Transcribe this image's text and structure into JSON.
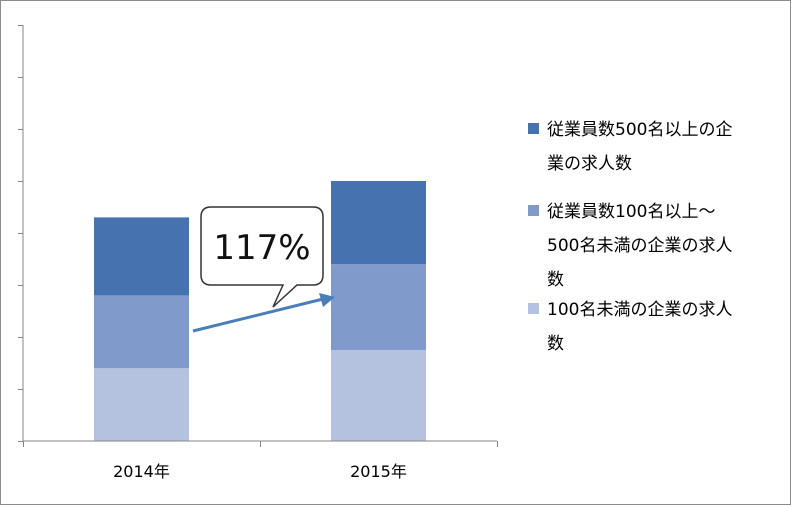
{
  "chart_data": {
    "type": "bar",
    "stacked": true,
    "categories": [
      "2014年",
      "2015年"
    ],
    "series": [
      {
        "name": "100名未満の企業の求人数",
        "values": [
          14,
          17.5
        ],
        "color": "#b4c1df"
      },
      {
        "name": "従業員数100名以上～500名未満の企業の求人数",
        "values": [
          14,
          16.5
        ],
        "color": "#7f9acb"
      },
      {
        "name": "従業員数500名以上の企業の求人数",
        "values": [
          15,
          16
        ],
        "color": "#4673b0"
      }
    ],
    "ylim": [
      0,
      80
    ],
    "grid": false,
    "legend_position": "right",
    "legend_entries": [
      {
        "lines": [
          "従業員数500名以上の企",
          "業の求人数"
        ],
        "color": "#4673b0"
      },
      {
        "lines": [
          "従業員数100名以上～",
          "500名未満の企業の求人",
          "数"
        ],
        "color": "#7f9acb"
      },
      {
        "lines": [
          "100名未満の企業の求人",
          "数"
        ],
        "color": "#b4c1df"
      }
    ],
    "annotation": {
      "text": "117%",
      "arrow_color": "#4a7ebb"
    }
  }
}
